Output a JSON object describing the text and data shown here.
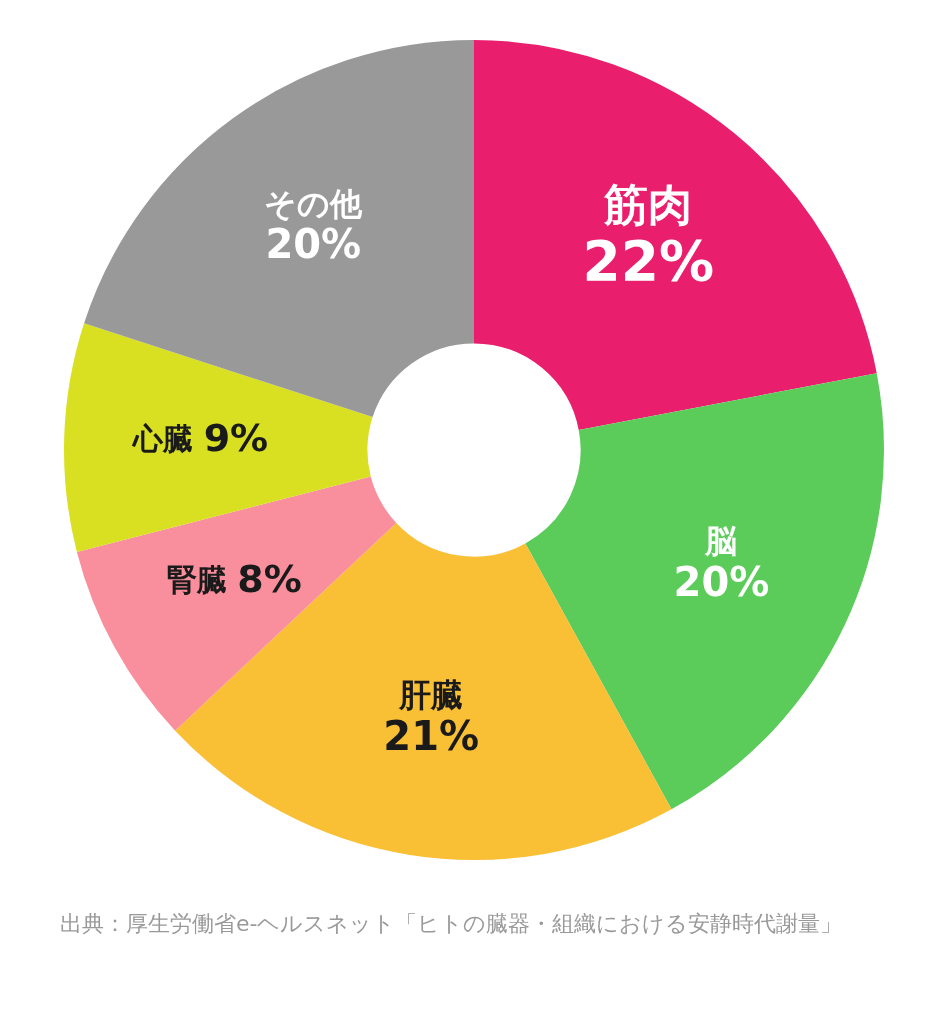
{
  "chart_data": {
    "type": "donut",
    "categories": [
      "筋肉",
      "脳",
      "肝臓",
      "腎臓",
      "心臓",
      "その他"
    ],
    "values": [
      22,
      20,
      21,
      8,
      9,
      20
    ],
    "value_labels": [
      "22%",
      "20%",
      "21%",
      "8%",
      "9%",
      "20%"
    ],
    "colors": [
      "#e91e6d",
      "#5bcc5a",
      "#f9bf35",
      "#f98e9c",
      "#d9e021",
      "#999999"
    ],
    "legend": false,
    "annotations": [
      "出典：厚生労働省e-ヘルスネット「ヒトの臓器・組織における安静時代謝量」"
    ]
  }
}
